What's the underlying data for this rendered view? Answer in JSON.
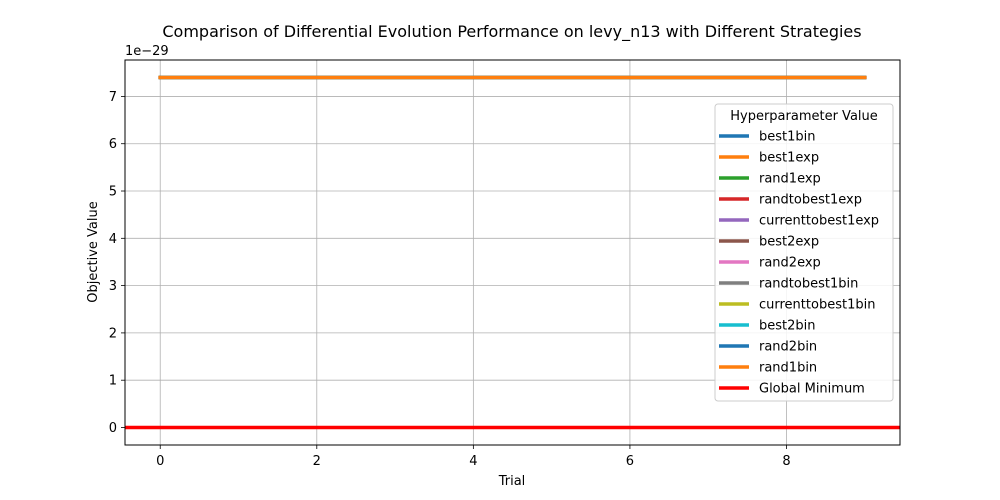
{
  "chart_data": {
    "type": "line",
    "title": "Comparison of Differential Evolution Performance on levy_n13 with Different Strategies",
    "xlabel": "Trial",
    "ylabel": "Objective Value",
    "y_offset_label": "1e−29",
    "y_scale_exponent": -29,
    "xlim": [
      -0.45,
      9.45
    ],
    "ylim": [
      -0.37,
      7.77
    ],
    "xticks": [
      "0",
      "2",
      "4",
      "6",
      "8"
    ],
    "yticks": [
      "0",
      "1",
      "2",
      "3",
      "4",
      "5",
      "6",
      "7"
    ],
    "grid": true,
    "legend": {
      "title": "Hyperparameter Value",
      "placement": "right"
    },
    "x": [
      0,
      1,
      2,
      3,
      4,
      5,
      6,
      7,
      8,
      9
    ],
    "series": [
      {
        "name": "best1bin",
        "color": "#1f77b4",
        "values": [
          7.4,
          7.4,
          7.4,
          7.4,
          7.4,
          7.4,
          7.4,
          7.4,
          7.4,
          7.4
        ]
      },
      {
        "name": "best1exp",
        "color": "#ff7f0e",
        "values": [
          7.4,
          7.4,
          7.4,
          7.4,
          7.4,
          7.4,
          7.4,
          7.4,
          7.4,
          7.4
        ]
      },
      {
        "name": "rand1exp",
        "color": "#2ca02c",
        "values": [
          7.4,
          7.4,
          7.4,
          7.4,
          7.4,
          7.4,
          7.4,
          7.4,
          7.4,
          7.4
        ]
      },
      {
        "name": "randtobest1exp",
        "color": "#d62728",
        "values": [
          7.4,
          7.4,
          7.4,
          7.4,
          7.4,
          7.4,
          7.4,
          7.4,
          7.4,
          7.4
        ]
      },
      {
        "name": "currenttobest1exp",
        "color": "#9467bd",
        "values": [
          7.4,
          7.4,
          7.4,
          7.4,
          7.4,
          7.4,
          7.4,
          7.4,
          7.4,
          7.4
        ]
      },
      {
        "name": "best2exp",
        "color": "#8c564b",
        "values": [
          7.4,
          7.4,
          7.4,
          7.4,
          7.4,
          7.4,
          7.4,
          7.4,
          7.4,
          7.4
        ]
      },
      {
        "name": "rand2exp",
        "color": "#e377c2",
        "values": [
          7.4,
          7.4,
          7.4,
          7.4,
          7.4,
          7.4,
          7.4,
          7.4,
          7.4,
          7.4
        ]
      },
      {
        "name": "randtobest1bin",
        "color": "#7f7f7f",
        "values": [
          7.4,
          7.4,
          7.4,
          7.4,
          7.4,
          7.4,
          7.4,
          7.4,
          7.4,
          7.4
        ]
      },
      {
        "name": "currenttobest1bin",
        "color": "#bcbd22",
        "values": [
          7.4,
          7.4,
          7.4,
          7.4,
          7.4,
          7.4,
          7.4,
          7.4,
          7.4,
          7.4
        ]
      },
      {
        "name": "best2bin",
        "color": "#17becf",
        "values": [
          7.4,
          7.4,
          7.4,
          7.4,
          7.4,
          7.4,
          7.4,
          7.4,
          7.4,
          7.4
        ]
      },
      {
        "name": "rand2bin",
        "color": "#1f77b4",
        "values": [
          7.4,
          7.4,
          7.4,
          7.4,
          7.4,
          7.4,
          7.4,
          7.4,
          7.4,
          7.4
        ]
      },
      {
        "name": "rand1bin",
        "color": "#ff7f0e",
        "values": [
          7.4,
          7.4,
          7.4,
          7.4,
          7.4,
          7.4,
          7.4,
          7.4,
          7.4,
          7.4
        ]
      }
    ],
    "reference_line": {
      "name": "Global Minimum",
      "color": "#ff0000",
      "y": 0
    }
  }
}
